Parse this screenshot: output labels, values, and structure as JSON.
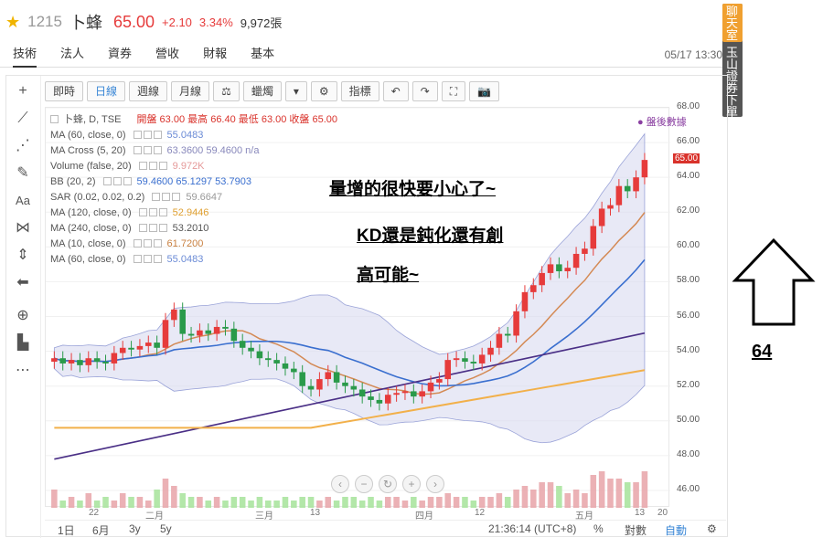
{
  "quote": {
    "code": "1215",
    "name": "卜蜂",
    "price": "65.00",
    "change": "+2.10",
    "change_pct": "3.34%",
    "volume": "9,972張"
  },
  "tabs": [
    "技術",
    "法人",
    "資券",
    "營收",
    "財報",
    "基本"
  ],
  "datetime": "05/17 13:30",
  "side_ad": {
    "top": "聊天室",
    "bottom": "玉山證券下單"
  },
  "toolbar": [
    "即時",
    "日線",
    "週線",
    "月線",
    "⚖",
    "蠟燭",
    "▾",
    "⚙",
    "指標",
    "↶",
    "↷",
    "⛶",
    "📷"
  ],
  "legend": {
    "title": "卜蜂, D, TSE",
    "ohlc": "開盤 63.00 最高 66.40 最低 63.00 收盤 65.00",
    "rows": [
      {
        "label": "MA (60, close, 0)",
        "value": "55.0483",
        "color": "#6b8bd6"
      },
      {
        "label": "MA Cross (5, 20)",
        "value": "63.3600 59.4600 n/a",
        "color": "#8888bb"
      },
      {
        "label": "Volume (false, 20)",
        "value": "9.972K",
        "color": "#e59a9a"
      },
      {
        "label": "BB (20, 2)",
        "value": "59.4600 65.1297 53.7903",
        "color": "#3a6fcf"
      },
      {
        "label": "SAR (0.02, 0.02, 0.2)",
        "value": "59.6647",
        "color": "#999"
      },
      {
        "label": "MA (120, close, 0)",
        "value": "52.9446",
        "color": "#e0a030"
      },
      {
        "label": "MA (240, close, 0)",
        "value": "53.2010",
        "color": "#555"
      },
      {
        "label": "MA (10, close, 0)",
        "value": "61.7200",
        "color": "#c98040"
      },
      {
        "label": "MA (60, close, 0)",
        "value": "55.0483",
        "color": "#6b8bd6"
      }
    ]
  },
  "after_hours": "● 盤後數據",
  "notes": [
    "量增的很快要小心了~",
    "KD還是鈍化還有創",
    "高可能~"
  ],
  "arrow_note": "64",
  "x_ticks": [
    "22",
    "二月",
    "三月",
    "13",
    "四月",
    "12",
    "五月",
    "13",
    "20"
  ],
  "bottom": {
    "ranges": [
      "1日",
      "6月",
      "3y",
      "5y"
    ],
    "clock": "21:36:14 (UTC+8)",
    "pct": "%",
    "log": "對數",
    "auto": "自動"
  },
  "colors": {
    "up": "#e63b3b",
    "down": "#2a9a4a",
    "accent": "#3a87d6"
  },
  "chart_data": {
    "type": "line",
    "ylim": [
      45,
      68
    ],
    "y_ticks": [
      46,
      48,
      50,
      52,
      54,
      56,
      58,
      60,
      62,
      64,
      66,
      68
    ],
    "current_price": 65.0,
    "close": [
      53.6,
      53.3,
      53.5,
      53.2,
      53.6,
      53.4,
      53.3,
      53.9,
      54.2,
      54.1,
      54.3,
      54.5,
      54.2,
      55.8,
      56.4,
      55.0,
      54.9,
      55.2,
      55.0,
      55.4,
      55.3,
      54.6,
      54.2,
      54.0,
      53.6,
      53.5,
      53.3,
      53.0,
      52.8,
      52.0,
      51.8,
      52.4,
      52.8,
      52.2,
      52.0,
      51.8,
      51.4,
      51.2,
      51.0,
      51.5,
      51.6,
      51.7,
      51.4,
      51.7,
      52.2,
      52.4,
      53.5,
      53.6,
      53.4,
      53.3,
      53.8,
      54.2,
      55.0,
      54.9,
      56.3,
      57.4,
      57.8,
      58.5,
      59.0,
      58.6,
      58.8,
      59.6,
      59.9,
      61.2,
      62.2,
      62.4,
      63.5,
      63.2,
      64.0,
      65.0
    ],
    "volume": [
      5,
      2,
      3,
      2,
      4,
      2,
      3,
      2,
      4,
      3,
      3,
      2,
      5,
      8,
      6,
      4,
      3,
      3,
      2,
      3,
      2,
      3,
      3,
      2,
      3,
      2,
      2,
      3,
      2,
      3,
      3,
      2,
      3,
      2,
      3,
      3,
      2,
      3,
      2,
      3,
      3,
      2,
      3,
      2,
      3,
      3,
      4,
      3,
      3,
      2,
      3,
      3,
      4,
      3,
      5,
      6,
      5,
      7,
      7,
      6,
      4,
      5,
      4,
      9,
      10,
      8,
      8,
      7,
      7,
      10
    ]
  }
}
